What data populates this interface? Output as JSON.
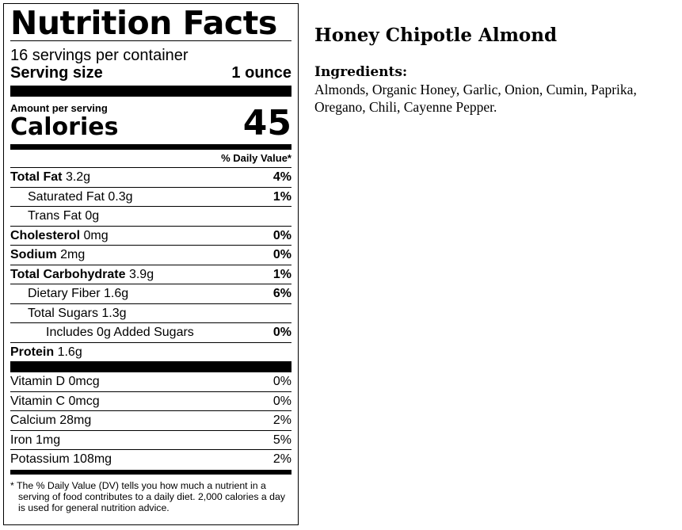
{
  "label": {
    "title": "Nutrition Facts",
    "servings_per_container": "16 servings per container",
    "serving_size_label": "Serving size",
    "serving_size_value": "1 ounce",
    "amount_per_serving": "Amount per serving",
    "calories_label": "Calories",
    "calories_value": "45",
    "dv_header": "% Daily Value*",
    "nutrients": [
      {
        "name": "Total Fat",
        "amount": "3.2g",
        "dv": "4%"
      },
      {
        "name": "Saturated Fat",
        "amount": "0.3g",
        "dv": "1%"
      },
      {
        "name": "Trans Fat",
        "amount": "0g",
        "dv": ""
      },
      {
        "name": "Cholesterol",
        "amount": "0mg",
        "dv": "0%"
      },
      {
        "name": "Sodium",
        "amount": "2mg",
        "dv": "0%"
      },
      {
        "name": "Total Carbohydrate",
        "amount": "3.9g",
        "dv": "1%"
      },
      {
        "name": "Dietary Fiber",
        "amount": "1.6g",
        "dv": "6%"
      },
      {
        "name": "Total Sugars",
        "amount": "1.3g",
        "dv": ""
      },
      {
        "name": "Includes 0g Added Sugars",
        "amount": "",
        "dv": "0%"
      },
      {
        "name": "Protein",
        "amount": "1.6g",
        "dv": ""
      }
    ],
    "vitamins": [
      {
        "name": "Vitamin D 0mcg",
        "dv": "0%"
      },
      {
        "name": "Vitamin C 0mcg",
        "dv": "0%"
      },
      {
        "name": "Calcium 28mg",
        "dv": "2%"
      },
      {
        "name": "Iron 1mg",
        "dv": "5%"
      },
      {
        "name": "Potassium 108mg",
        "dv": "2%"
      }
    ],
    "footnote": "* The % Daily Value (DV) tells you how much a nutrient in a serving of food contributes to a daily diet. 2,000 calories a day is used for general nutrition advice."
  },
  "product": {
    "name": "Honey Chipotle Almond",
    "ingredients_heading": "Ingredients:",
    "ingredients": "Almonds, Organic Honey, Garlic, Onion, Cumin, Paprika, Oregano, Chili, Cayenne Pepper."
  }
}
